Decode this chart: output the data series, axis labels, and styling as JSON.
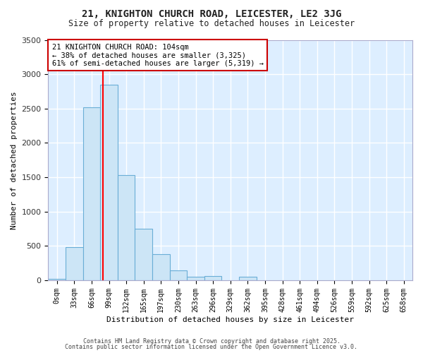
{
  "title1": "21, KNIGHTON CHURCH ROAD, LEICESTER, LE2 3JG",
  "title2": "Size of property relative to detached houses in Leicester",
  "xlabel": "Distribution of detached houses by size in Leicester",
  "ylabel": "Number of detached properties",
  "bar_labels": [
    "0sqm",
    "33sqm",
    "66sqm",
    "99sqm",
    "132sqm",
    "165sqm",
    "197sqm",
    "230sqm",
    "263sqm",
    "296sqm",
    "329sqm",
    "362sqm",
    "395sqm",
    "428sqm",
    "461sqm",
    "494sqm",
    "526sqm",
    "559sqm",
    "592sqm",
    "625sqm",
    "658sqm"
  ],
  "bar_values": [
    20,
    480,
    2520,
    2850,
    1530,
    750,
    380,
    140,
    55,
    60,
    0,
    55,
    0,
    0,
    0,
    0,
    0,
    0,
    0,
    0,
    0
  ],
  "bar_color": "#cce5f6",
  "bar_edge_color": "#6aaed6",
  "annotation_title": "21 KNIGHTON CHURCH ROAD: 104sqm",
  "annotation_line1": "← 38% of detached houses are smaller (3,325)",
  "annotation_line2": "61% of semi-detached houses are larger (5,319) →",
  "annotation_box_color": "#ffffff",
  "annotation_box_edge": "#cc0000",
  "footer1": "Contains HM Land Registry data © Crown copyright and database right 2025.",
  "footer2": "Contains public sector information licensed under the Open Government Licence v3.0.",
  "fig_bg_color": "#ffffff",
  "plot_bg_color": "#ddeeff",
  "grid_color": "#ffffff",
  "ylim": [
    0,
    3500
  ]
}
